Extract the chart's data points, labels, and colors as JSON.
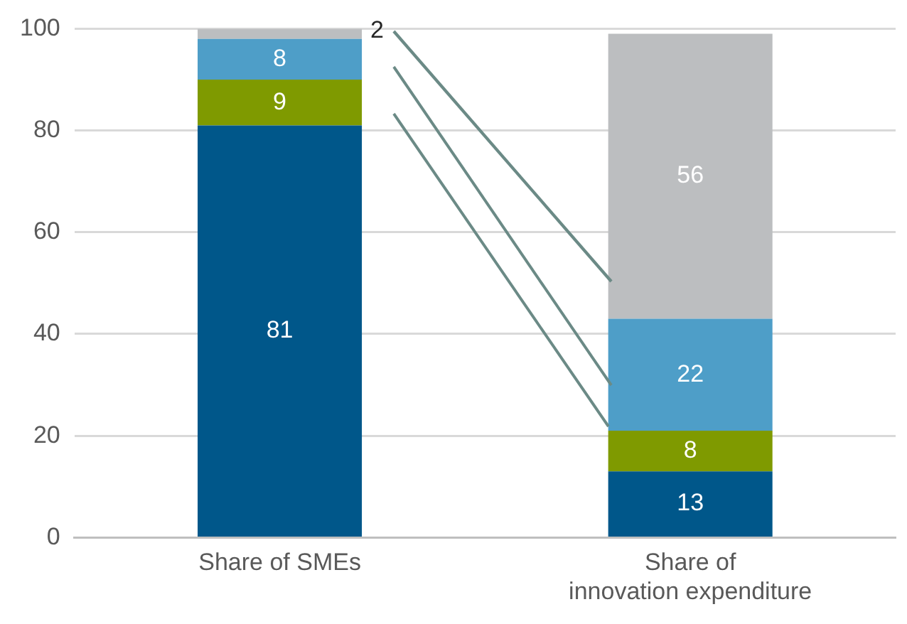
{
  "chart_data": {
    "type": "bar",
    "stacked": true,
    "categories": [
      "Share of SMEs",
      "Share of\ninnovation expenditure"
    ],
    "series": [
      {
        "color": "#00578a",
        "values": [
          81,
          13
        ]
      },
      {
        "color": "#7f9a00",
        "values": [
          9,
          8
        ]
      },
      {
        "color": "#4e9ec8",
        "values": [
          8,
          22
        ]
      },
      {
        "color": "#bcbec0",
        "values": [
          2,
          56
        ]
      }
    ],
    "ylim": [
      0,
      100
    ],
    "yticks": [
      0,
      20,
      40,
      60,
      80,
      100
    ],
    "grid": "y",
    "legend": false,
    "data_labels": true
  }
}
